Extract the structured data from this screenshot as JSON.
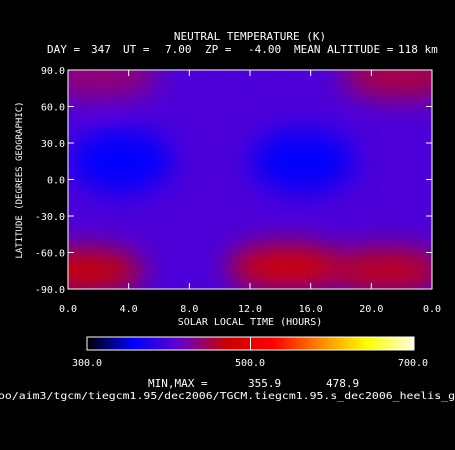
{
  "chart_data": {
    "type": "heatmap",
    "title": "NEUTRAL TEMPERATURE (K)",
    "subtitle": {
      "day_label": "DAY =",
      "day": "347",
      "ut_label": "UT =",
      "ut": "7.00",
      "zp_label": "ZP =",
      "zp": "-4.00",
      "alt_label": "MEAN ALTITUDE =",
      "alt": "118 km"
    },
    "xlabel": "SOLAR LOCAL TIME (HOURS)",
    "ylabel": "LATITUDE (DEGREES GEOGRAPHIC)",
    "xlim": [
      0,
      24
    ],
    "ylim": [
      -90,
      90
    ],
    "xticks": [
      "0.0",
      "4.0",
      "8.0",
      "12.0",
      "16.0",
      "20.0",
      "0.0"
    ],
    "yticks": [
      "90.0",
      "60.0",
      "30.0",
      "0.0",
      "-30.0",
      "-60.0",
      "-90.0"
    ],
    "grid": false,
    "colorbar": {
      "min": 300.0,
      "max": 700.0,
      "ticks": [
        "300.0",
        "500.0",
        "700.0"
      ],
      "colors": [
        "#000000",
        "#0000ff",
        "#6600cc",
        "#cc0000",
        "#ff0000",
        "#ff8800",
        "#ffff00",
        "#ffffe0"
      ]
    },
    "minmax_label": "MIN,MAX =",
    "min_value": "355.9",
    "max_value": "478.9",
    "features": [
      {
        "slt": 3.5,
        "lat": 15,
        "value": 358,
        "kind": "minimum"
      },
      {
        "slt": 15.5,
        "lat": 15,
        "value": 360,
        "kind": "minimum"
      },
      {
        "slt": 14.5,
        "lat": -72,
        "value": 478.9,
        "kind": "maximum"
      },
      {
        "slt": 1.0,
        "lat": -75,
        "value": 470,
        "kind": "maximum"
      },
      {
        "slt": 21.0,
        "lat": -75,
        "value": 465,
        "kind": "maximum"
      },
      {
        "slt": 22.0,
        "lat": 85,
        "value": 455,
        "kind": "maximum"
      },
      {
        "slt": 2.0,
        "lat": 85,
        "value": 440,
        "kind": "maximum"
      }
    ],
    "background_value": 400
  },
  "footer_path": "oo/aim3/tgcm/tiegcm1.95/dec2006/TGCM.tiegcm1.95.s_dec2006_heelis_g"
}
